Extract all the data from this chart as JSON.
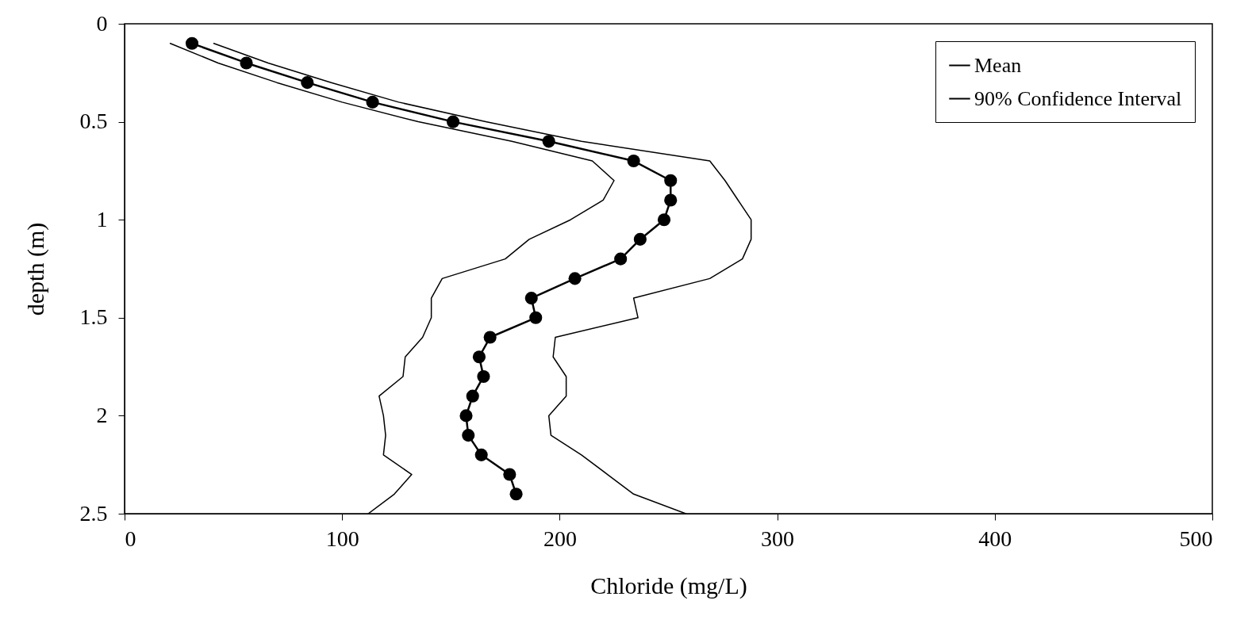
{
  "chart_data": {
    "type": "line",
    "xlabel": "Chloride (mg/L)",
    "ylabel": "depth (m)",
    "xlim": [
      0,
      500
    ],
    "xticks": [
      0,
      100,
      200,
      300,
      400,
      500
    ],
    "ylim": [
      2.5,
      0
    ],
    "yticks": [
      0,
      0.5,
      1,
      1.5,
      2,
      2.5
    ],
    "grid": false,
    "legend": "top right",
    "line_style": "solid",
    "series": [
      {
        "name": "Mean",
        "color": "#000000",
        "marker": "circle",
        "x": [
          31,
          56,
          84,
          114,
          151,
          195,
          234,
          251,
          251,
          248,
          237,
          228,
          207,
          187,
          189,
          168,
          163,
          165,
          160,
          157,
          158,
          164,
          177,
          180
        ],
        "values": [
          0.1,
          0.2,
          0.3,
          0.4,
          0.5,
          0.6,
          0.7,
          0.8,
          0.9,
          1.0,
          1.1,
          1.2,
          1.3,
          1.4,
          1.5,
          1.6,
          1.7,
          1.8,
          1.9,
          2.0,
          2.1,
          2.2,
          2.3,
          2.4
        ]
      },
      {
        "name": "90% Confidence Interval",
        "color": "#000000",
        "marker": "none",
        "x": [
          41,
          66,
          95,
          126,
          166,
          210,
          269,
          276,
          282,
          288,
          288,
          284,
          269,
          234,
          236,
          198,
          197,
          203,
          203,
          195,
          196,
          210,
          222,
          234,
          258
        ],
        "values": [
          0.1,
          0.2,
          0.3,
          0.4,
          0.5,
          0.6,
          0.7,
          0.8,
          0.9,
          1.0,
          1.1,
          1.2,
          1.3,
          1.4,
          1.5,
          1.6,
          1.7,
          1.8,
          1.9,
          2.0,
          2.1,
          2.2,
          2.3,
          2.4,
          2.5
        ]
      },
      {
        "color": "#000000",
        "marker": "none",
        "x": [
          21,
          43,
          70,
          100,
          135,
          178,
          215,
          225,
          220,
          205,
          186,
          175,
          146,
          141,
          141,
          137,
          129,
          128,
          117,
          119,
          120,
          119,
          132,
          124,
          112
        ],
        "values": [
          0.1,
          0.2,
          0.3,
          0.4,
          0.5,
          0.6,
          0.7,
          0.8,
          0.9,
          1.0,
          1.1,
          1.2,
          1.3,
          1.4,
          1.5,
          1.6,
          1.7,
          1.8,
          1.9,
          2.0,
          2.1,
          2.2,
          2.3,
          2.4,
          2.5
        ]
      }
    ]
  }
}
